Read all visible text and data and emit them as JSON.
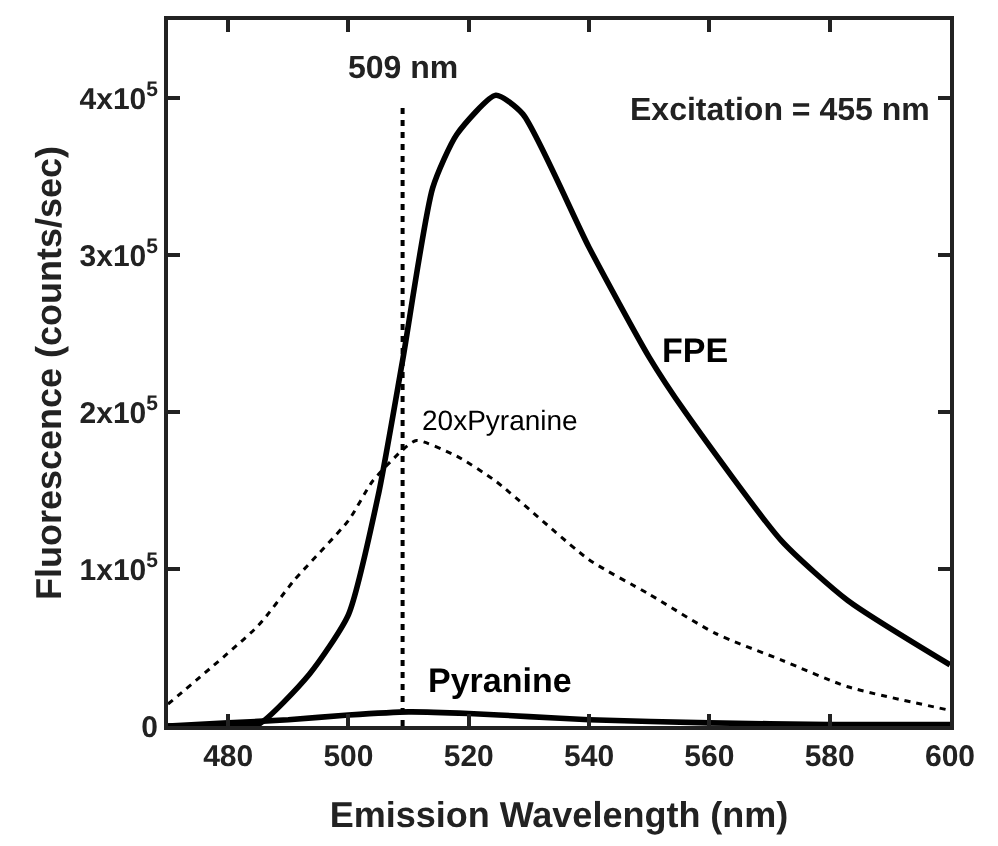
{
  "chart_data": {
    "type": "line",
    "xlabel": "Emission Wavelength (nm)",
    "ylabel": "Fluorescence (counts/sec)",
    "xlim": [
      470,
      600
    ],
    "xticks": [
      480,
      500,
      520,
      540,
      560,
      580,
      600
    ],
    "ylim": [
      0,
      450000
    ],
    "yticks": [
      0,
      {
        "value": 100000,
        "label": "1x10$^{5}$"
      },
      {
        "value": 200000,
        "label": "2x10$^{5}$"
      },
      {
        "value": 300000,
        "label": "3x10$^{5}$"
      },
      {
        "value": 400000,
        "label": "4x10$^{5}$"
      }
    ],
    "legend": false,
    "marker": "none",
    "series": [
      {
        "name": "FPE",
        "color": "#000000",
        "line_style": "solid",
        "x": [
          470,
          480,
          485,
          493.5,
          500,
          505,
          509,
          514,
          518,
          524.5,
          529,
          540,
          550,
          556,
          572,
          583,
          600
        ],
        "values": [
          0,
          0,
          1000,
          33000,
          71000,
          148000,
          233000,
          343000,
          377000,
          402000,
          390000,
          305000,
          235000,
          200000,
          118000,
          80000,
          39000
        ]
      },
      {
        "name": "20xPyranine",
        "color": "#000000",
        "line_style": "dotted",
        "x": [
          470,
          485,
          491,
          500,
          504,
          509,
          511.3,
          518,
          524.5,
          540,
          550,
          561,
          572,
          583,
          600
        ],
        "values": [
          14000,
          64000,
          93000,
          131000,
          156000,
          176000,
          182000,
          172000,
          156000,
          106000,
          84000,
          59000,
          42000,
          25000,
          10000
        ]
      },
      {
        "name": "Pyranine",
        "color": "#000000",
        "line_style": "solid",
        "x": [
          470,
          480,
          490,
          500,
          510,
          520,
          530,
          540,
          560,
          580,
          600
        ],
        "values": [
          0,
          2000,
          4000,
          7000,
          9000,
          8000,
          6000,
          4000,
          2000,
          1000,
          1000
        ]
      }
    ],
    "ref_lines": [
      {
        "axis": "x",
        "value": 509,
        "label": "509 nm",
        "line_style": "dotted",
        "color": "#000000"
      }
    ],
    "annotations": [
      "Excitation = 455 nm"
    ]
  }
}
